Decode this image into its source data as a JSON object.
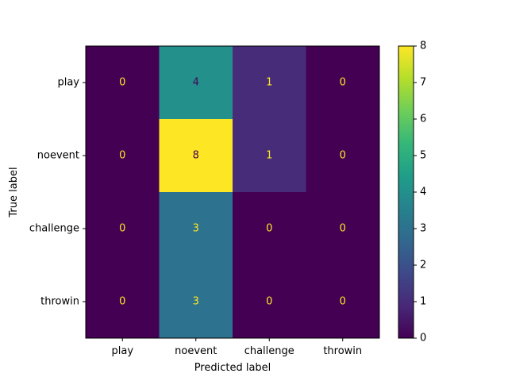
{
  "chart_data": {
    "type": "heatmap",
    "title": "",
    "xlabel": "Predicted label",
    "ylabel": "True label",
    "x_categories": [
      "play",
      "noevent",
      "challenge",
      "throwin"
    ],
    "y_categories": [
      "play",
      "noevent",
      "challenge",
      "throwin"
    ],
    "values": [
      [
        0,
        4,
        1,
        0
      ],
      [
        0,
        8,
        1,
        0
      ],
      [
        0,
        3,
        0,
        0
      ],
      [
        0,
        3,
        0,
        0
      ]
    ],
    "colorbar": {
      "min": 0,
      "max": 8,
      "ticks": [
        "0",
        "1",
        "2",
        "3",
        "4",
        "5",
        "6",
        "7",
        "8"
      ]
    },
    "colormap": "viridis",
    "grid": false
  }
}
